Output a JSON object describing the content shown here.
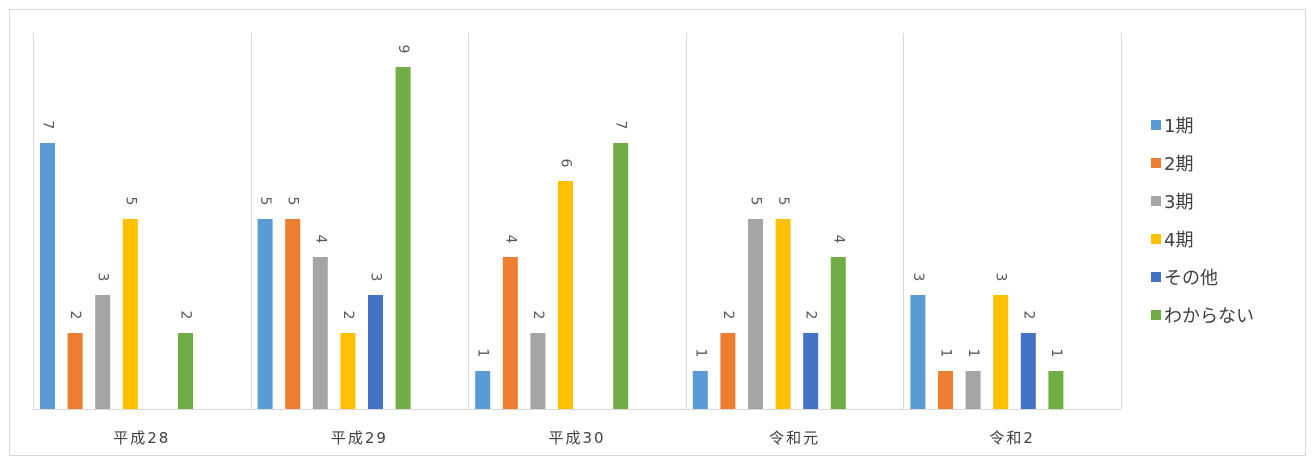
{
  "chart_data": {
    "type": "bar",
    "categories": [
      "平成28",
      "平成29",
      "平成30",
      "令和元",
      "令和2"
    ],
    "series": [
      {
        "name": "1期",
        "color": "#5b9bd5",
        "values": [
          7,
          5,
          1,
          1,
          3
        ]
      },
      {
        "name": "2期",
        "color": "#ed7d31",
        "values": [
          2,
          5,
          4,
          2,
          1
        ]
      },
      {
        "name": "3期",
        "color": "#a5a5a5",
        "values": [
          3,
          4,
          2,
          5,
          1
        ]
      },
      {
        "name": "4期",
        "color": "#ffc000",
        "values": [
          5,
          2,
          6,
          5,
          3
        ]
      },
      {
        "name": "その他",
        "color": "#4472c4",
        "values": [
          null,
          3,
          null,
          2,
          2
        ]
      },
      {
        "name": "わからない",
        "color": "#70ad47",
        "values": [
          2,
          9,
          7,
          4,
          1
        ]
      }
    ],
    "ylim": [
      0,
      10
    ],
    "grid": false,
    "category_separators": true,
    "data_labels": true,
    "legend_position": "right"
  }
}
